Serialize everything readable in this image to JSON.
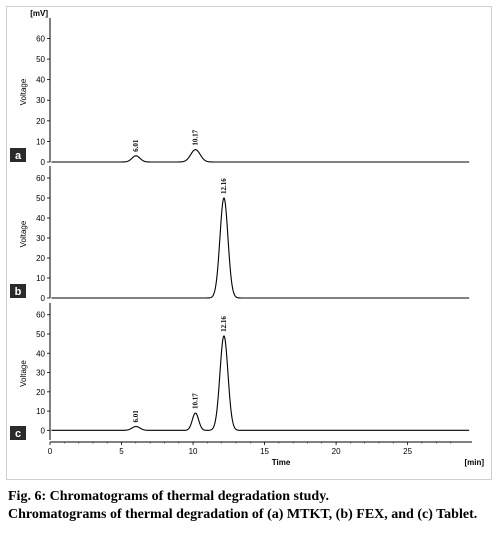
{
  "chart_data": [
    {
      "type": "line",
      "panel_label": "a",
      "unit_label": "[mV]",
      "ylabel": "Voltage",
      "xlim": [
        0,
        29.5
      ],
      "ylim": [
        0,
        68
      ],
      "yticks": [
        0,
        10,
        20,
        30,
        40,
        50,
        60
      ],
      "peaks": [
        {
          "rt": 6.01,
          "label": "6.01",
          "height": 3,
          "width": 0.28
        },
        {
          "rt": 10.17,
          "label": "10.17",
          "height": 6,
          "width": 0.33
        }
      ],
      "baseline_start": 0
    },
    {
      "type": "line",
      "panel_label": "b",
      "ylabel": "Voltage",
      "xlim": [
        0,
        29.5
      ],
      "ylim": [
        0,
        64
      ],
      "yticks": [
        0,
        10,
        20,
        30,
        40,
        50,
        60
      ],
      "peaks": [
        {
          "rt": 12.16,
          "label": "12.16",
          "height": 50,
          "width": 0.28
        }
      ],
      "baseline_start": 0
    },
    {
      "type": "line",
      "panel_label": "c",
      "ylabel": "Voltage",
      "xlabel": "Time",
      "x_unit_label": "[min]",
      "xlim": [
        0,
        29.5
      ],
      "ylim": [
        -5,
        64
      ],
      "yticks": [
        0,
        10,
        20,
        30,
        40,
        50,
        60
      ],
      "xticks": [
        0,
        5,
        10,
        15,
        20,
        25
      ],
      "peaks": [
        {
          "rt": 6.01,
          "label": "6.01",
          "height": 2,
          "width": 0.28
        },
        {
          "rt": 10.17,
          "label": "10.17",
          "height": 9,
          "width": 0.22
        },
        {
          "rt": 12.16,
          "label": "12.16",
          "height": 49,
          "width": 0.28
        }
      ],
      "baseline_start": -5
    }
  ],
  "caption": {
    "title": "Fig. 6: Chromatograms of thermal degradation study.",
    "body": "Chromatograms of thermal degradation of (a) MTKT, (b) FEX, and (c) Tablet."
  },
  "colors": {
    "trace": "#000000",
    "panel_label_bg": "#2b2b2b",
    "panel_label_fg": "#ffffff",
    "frame": "#cfcfcf"
  }
}
